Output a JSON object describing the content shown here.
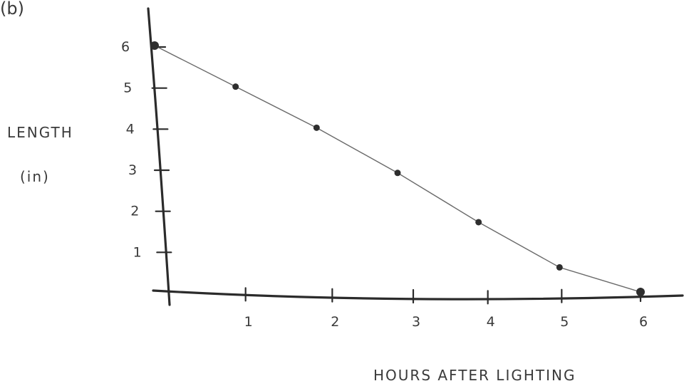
{
  "panel_label": "(b)",
  "chart_data": {
    "type": "line",
    "title": "",
    "xlabel": "HOURS AFTER LIGHTING",
    "ylabel": "LENGTH (in)",
    "ylabel_lines": [
      "LENGTH",
      "(in)"
    ],
    "x_ticks": [
      "1",
      "2",
      "3",
      "4",
      "5",
      "6"
    ],
    "y_ticks": [
      "1",
      "2",
      "3",
      "4",
      "5",
      "6"
    ],
    "xlim": [
      0,
      6
    ],
    "ylim": [
      0,
      6
    ],
    "grid": false,
    "points": [
      {
        "x": 0,
        "y": 6
      },
      {
        "x": 1,
        "y": 5
      },
      {
        "x": 2,
        "y": 4
      },
      {
        "x": 3,
        "y": 2.9
      },
      {
        "x": 4,
        "y": 1.7
      },
      {
        "x": 5,
        "y": 0.6
      },
      {
        "x": 6,
        "y": 0
      }
    ],
    "colors": {
      "axis": "#2b2b2b",
      "line": "#6a6a6a",
      "point": "#2e2e2e"
    }
  }
}
